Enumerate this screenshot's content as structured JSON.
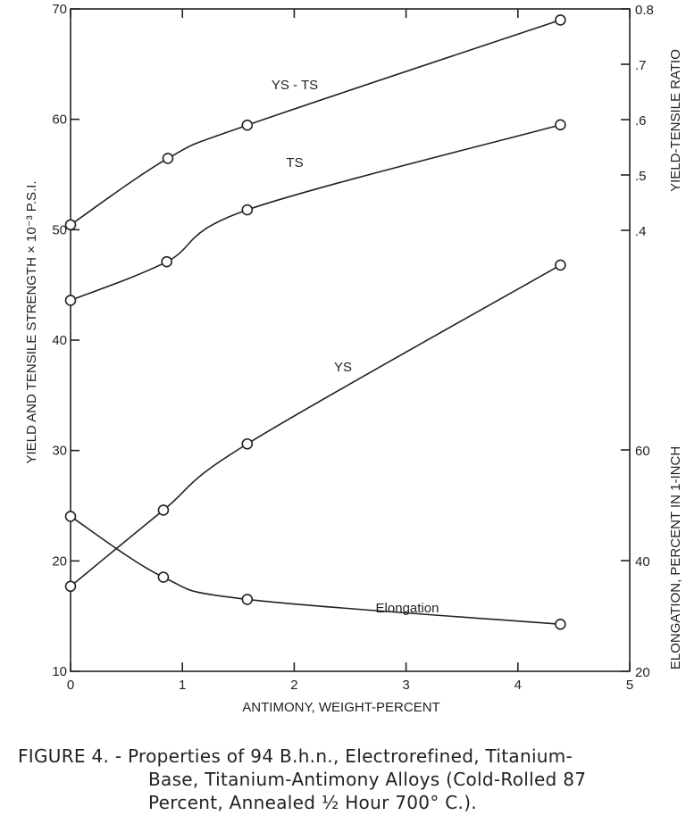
{
  "chart_data": {
    "type": "line",
    "xlabel": "ANTIMONY, WEIGHT-PERCENT",
    "ylabel_left": "YIELD AND TENSILE STRENGTH × 10⁻³ P.S.I.",
    "ylabel_right_top": "YIELD-TENSILE RATIO",
    "ylabel_right_bottom": "ELONGATION, PERCENT IN 1-INCH",
    "xlim": [
      0,
      5
    ],
    "ylim_left": [
      10,
      70
    ],
    "ylim_right_ratio": [
      0.4,
      0.8
    ],
    "ylim_right_elongation": [
      20,
      60
    ],
    "x_ticks": [
      "0",
      "1",
      "2",
      "3",
      "4",
      "5"
    ],
    "y_ticks_left": [
      "10",
      "20",
      "30",
      "40",
      "50",
      "60",
      "70"
    ],
    "y_ticks_right_ratio": [
      "0.8",
      ".7",
      ".6",
      ".5",
      ".4"
    ],
    "y_ticks_right_elongation": [
      "60",
      "40",
      "20"
    ],
    "grid": false,
    "series": [
      {
        "name": "YS-TS",
        "axis": "ratio",
        "x": [
          0,
          0.87,
          1.58,
          4.38
        ],
        "y": [
          0.41,
          0.53,
          0.59,
          0.78
        ]
      },
      {
        "name": "TS",
        "axis": "left",
        "x": [
          0,
          0.86,
          1.58,
          4.38
        ],
        "y": [
          43.6,
          47.1,
          51.8,
          59.5
        ]
      },
      {
        "name": "YS",
        "axis": "left",
        "x": [
          0,
          0.83,
          1.58,
          4.38
        ],
        "y": [
          17.7,
          24.6,
          30.6,
          46.8
        ]
      },
      {
        "name": "Elongation",
        "axis": "elongation",
        "x": [
          0,
          0.83,
          1.58,
          4.38
        ],
        "y": [
          48,
          37,
          33,
          28.5
        ]
      }
    ]
  },
  "caption": {
    "line1": "FIGURE  4. - Properties of 94 B.h.n., Electrorefined, Titanium-",
    "line2": "Base, Titanium-Antimony Alloys (Cold-Rolled 87",
    "line3": "Percent, Annealed ½ Hour 700° C.)."
  }
}
